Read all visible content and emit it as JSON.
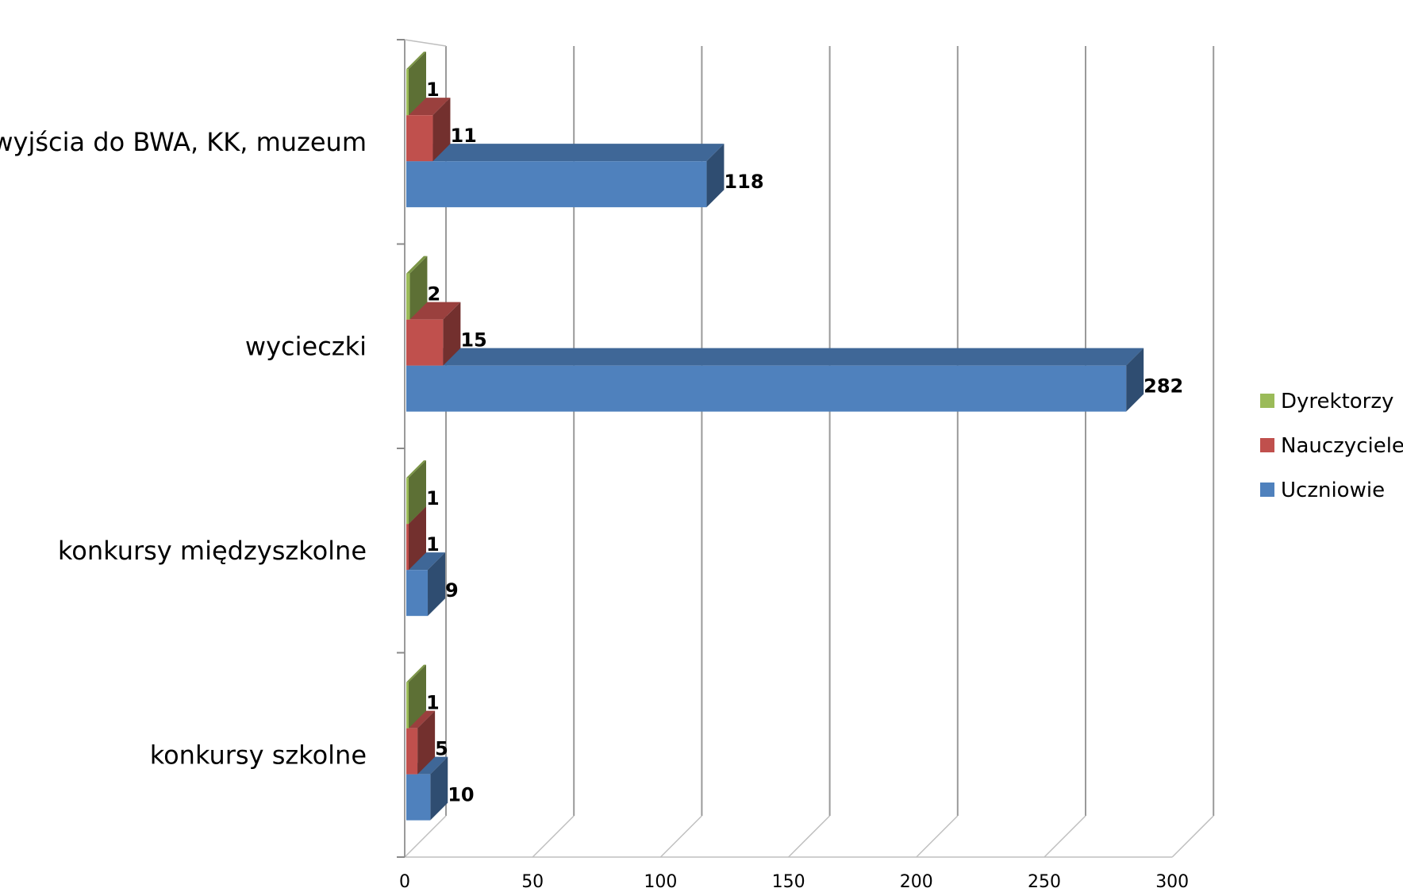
{
  "chart_data": {
    "type": "bar",
    "orientation": "horizontal",
    "three_d": true,
    "categories": [
      "wyjścia do BWA, KK, muzeum",
      "wycieczki",
      "konkursy międzyszkolne",
      "konkursy szkolne"
    ],
    "series": [
      {
        "name": "Dyrektorzy",
        "color": "#9bbb59",
        "values": [
          1,
          2,
          1,
          1
        ]
      },
      {
        "name": "Nauczyciele",
        "color": "#c0504d",
        "values": [
          11,
          15,
          1,
          5
        ]
      },
      {
        "name": "Uczniowie",
        "color": "#4f81bd",
        "values": [
          118,
          282,
          9,
          10
        ]
      }
    ],
    "xlim": [
      0,
      300
    ],
    "xticks": [
      0,
      50,
      100,
      150,
      200,
      250,
      300
    ],
    "grid": true,
    "legend": "right",
    "data_labels": true
  }
}
